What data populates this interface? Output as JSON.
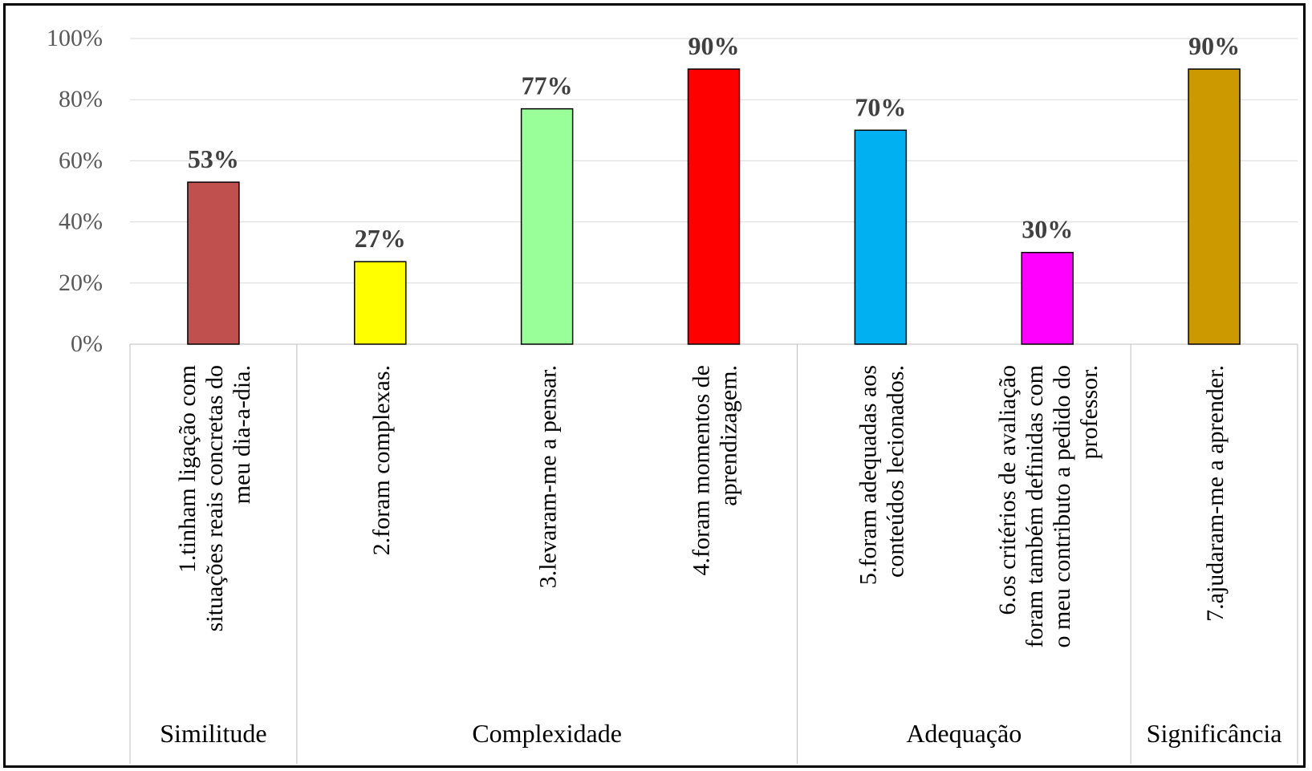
{
  "chart_data": {
    "type": "bar",
    "title": "",
    "xlabel": "",
    "ylabel": "",
    "ylim": [
      0,
      100
    ],
    "y_ticks": [
      "0%",
      "20%",
      "40%",
      "60%",
      "80%",
      "100%"
    ],
    "y_tick_values": [
      0,
      20,
      40,
      60,
      80,
      100
    ],
    "grid": true,
    "legend": "none",
    "categories": [
      [
        "1.tinham ligação com",
        "situações reais concretas do",
        "meu dia-a-dia."
      ],
      [
        "2.foram complexas."
      ],
      [
        "3.levaram-me a pensar."
      ],
      [
        "4.foram momentos de",
        "aprendizagem."
      ],
      [
        "5.foram adequadas aos",
        "conteúdos lecionados."
      ],
      [
        "6.os critérios de avaliação",
        "foram também definidas com",
        "o meu contributo a pedido do",
        "professor."
      ],
      [
        "7.ajudaram-me a aprender."
      ]
    ],
    "values": [
      53,
      27,
      77,
      90,
      70,
      30,
      90
    ],
    "data_labels": [
      "53%",
      "27%",
      "77%",
      "90%",
      "70%",
      "30%",
      "90%"
    ],
    "colors": [
      "#C0504D",
      "#FFFF00",
      "#99FF99",
      "#FF0000",
      "#00B0F0",
      "#FF00FF",
      "#CC9900"
    ],
    "groups": [
      {
        "name": "Similitude",
        "count": 1
      },
      {
        "name": "Complexidade",
        "count": 3
      },
      {
        "name": "Adequação",
        "count": 2
      },
      {
        "name": "Significância",
        "count": 1
      }
    ]
  }
}
